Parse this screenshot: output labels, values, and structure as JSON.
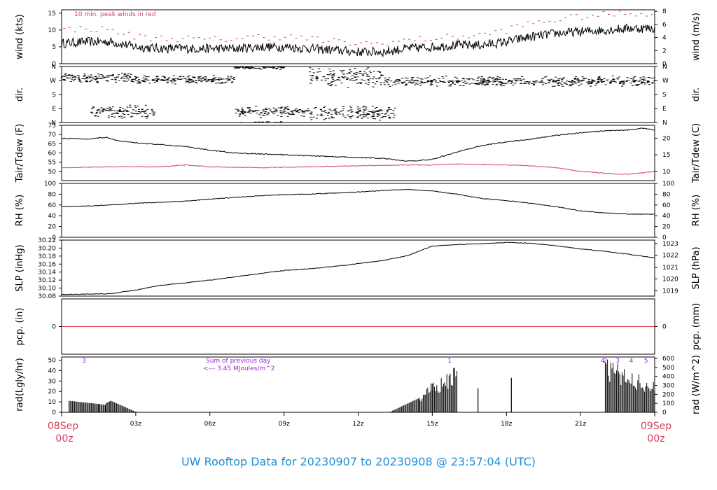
{
  "page": {
    "title": "UW Rooftop Data for 20230907  to  20230908 @ 23:57:04  (UTC)"
  },
  "colors": {
    "title": "#1f8fd6",
    "red": "#d6405a",
    "purple": "#9a2bd8",
    "line": "#000000"
  },
  "chart_data": {
    "type": "line",
    "x_axis": {
      "unit": "hours UTC since 08Sep 00z",
      "range": [
        0,
        24
      ],
      "ticks": [
        {
          "x": 3,
          "label": "03z"
        },
        {
          "x": 6,
          "label": "06z"
        },
        {
          "x": 9,
          "label": "09z"
        },
        {
          "x": 12,
          "label": "12z"
        },
        {
          "x": 15,
          "label": "15z"
        },
        {
          "x": 18,
          "label": "18z"
        },
        {
          "x": 21,
          "label": "21z"
        }
      ],
      "start_label": [
        "08Sep",
        "00z"
      ],
      "end_label": [
        "09Sep",
        "00z"
      ]
    },
    "panels": [
      {
        "id": "wind",
        "left_label": "wind (kts)",
        "right_label": "wind (m/s)",
        "ylim": [
          0,
          16
        ],
        "left_ticks": [
          0,
          5,
          10,
          15
        ],
        "right_ticks": [
          {
            "v": 0,
            "label": "0"
          },
          {
            "v": 3.89,
            "label": "2"
          },
          {
            "v": 7.78,
            "label": "4"
          },
          {
            "v": 11.66,
            "label": "6"
          },
          {
            "v": 15.55,
            "label": "8"
          }
        ],
        "annotation": "10 min. peak winds in red",
        "series": [
          {
            "style": "line",
            "color": "#000000",
            "x": [
              0,
              1,
              2,
              3,
              4,
              5,
              6,
              7,
              8,
              9,
              10,
              11,
              12,
              13,
              14,
              15,
              16,
              17,
              18,
              19,
              20,
              21,
              22,
              23,
              24
            ],
            "values": [
              6,
              6.5,
              6.5,
              5,
              4.5,
              4.5,
              4.5,
              4.5,
              5,
              5,
              4.5,
              4,
              3.5,
              3.5,
              4.5,
              5,
              5.5,
              5.5,
              6.5,
              8,
              9,
              9.5,
              10,
              10.5,
              10.5
            ],
            "noise": 1.4
          },
          {
            "style": "dash",
            "color": "#d6405a",
            "x": [
              0,
              1,
              2,
              3,
              4,
              5,
              6,
              7,
              8,
              9,
              10,
              11,
              12,
              13,
              14,
              15,
              16,
              17,
              18,
              19,
              20,
              21,
              22,
              23,
              24
            ],
            "values": [
              10,
              10.5,
              10,
              8,
              7.5,
              7.5,
              7,
              7.5,
              8,
              8,
              7.5,
              6.5,
              6,
              6,
              7,
              7.5,
              8,
              8.5,
              10,
              12,
              13,
              14,
              14.5,
              15,
              15
            ],
            "noise": 1.0
          }
        ]
      },
      {
        "id": "dir",
        "left_label": "dir.",
        "right_label": "dir.",
        "ylim": [
          0,
          360
        ],
        "left_ticks": [
          {
            "v": 0,
            "label": "N"
          },
          {
            "v": 90,
            "label": "E"
          },
          {
            "v": 180,
            "label": "S"
          },
          {
            "v": 270,
            "label": "W"
          },
          {
            "v": 360,
            "label": "N"
          }
        ],
        "right_ticks": [
          {
            "v": 0,
            "label": "N"
          },
          {
            "v": 90,
            "label": "E"
          },
          {
            "v": 180,
            "label": "S"
          },
          {
            "v": 270,
            "label": "W"
          },
          {
            "v": 360,
            "label": "N"
          }
        ],
        "series": [
          {
            "style": "scatter",
            "color": "#000000",
            "clusters": [
              {
                "x0": 0,
                "x1": 3,
                "center": 285,
                "spread": 35
              },
              {
                "x0": 1.2,
                "x1": 3.8,
                "center": 70,
                "spread": 45
              },
              {
                "x0": 3,
                "x1": 7,
                "center": 275,
                "spread": 30
              },
              {
                "x0": 7,
                "x1": 9,
                "center": 355,
                "spread": 15
              },
              {
                "x0": 7,
                "x1": 10,
                "center": 70,
                "spread": 40
              },
              {
                "x0": 10,
                "x1": 13,
                "center": 290,
                "spread": 70
              },
              {
                "x0": 10,
                "x1": 13.5,
                "center": 60,
                "spread": 50
              },
              {
                "x0": 13,
                "x1": 24,
                "center": 265,
                "spread": 35
              }
            ]
          }
        ]
      },
      {
        "id": "temp",
        "left_label": "Tair/Tdew (F)",
        "right_label": "Tair/Tdew (C)",
        "ylim": [
          45,
          75
        ],
        "left_ticks": [
          50,
          55,
          60,
          65,
          70,
          75
        ],
        "right_ticks": [
          {
            "v": 50,
            "label": "10"
          },
          {
            "v": 59,
            "label": "15"
          },
          {
            "v": 68,
            "label": "20"
          }
        ],
        "series": [
          {
            "style": "line",
            "color": "#000000",
            "x": [
              0,
              1,
              1.8,
              2.3,
              3,
              4,
              5,
              6,
              7,
              8,
              9,
              10,
              11,
              12,
              13,
              14,
              15,
              16,
              17,
              18,
              19,
              20,
              21,
              22,
              23,
              23.5,
              24
            ],
            "values": [
              68,
              67.5,
              68.5,
              66.5,
              65.5,
              64.5,
              63.5,
              61.5,
              60,
              59.5,
              59,
              58.5,
              58,
              57.5,
              57,
              55.5,
              56.5,
              60.5,
              64,
              66,
              67.5,
              69.5,
              71,
              72,
              72.5,
              73.5,
              72.5
            ],
            "noise": 0.25
          },
          {
            "style": "line",
            "color": "#d6405a",
            "x": [
              0,
              2,
              4,
              5,
              6,
              8,
              10,
              12,
              14,
              15,
              16,
              18,
              19,
              20,
              21,
              22,
              22.5,
              23,
              24
            ],
            "values": [
              52,
              52.5,
              52.5,
              53.5,
              52.5,
              52,
              52.5,
              53,
              53.5,
              53.5,
              54,
              53.5,
              53,
              52,
              50,
              49,
              48.5,
              48.5,
              50
            ],
            "noise": 0.2
          }
        ]
      },
      {
        "id": "rh",
        "left_label": "RH (%)",
        "right_label": "RH (%)",
        "ylim": [
          0,
          100
        ],
        "left_ticks": [
          0,
          20,
          40,
          60,
          80,
          100
        ],
        "right_ticks": [
          {
            "v": 0,
            "label": "0"
          },
          {
            "v": 20,
            "label": "20"
          },
          {
            "v": 40,
            "label": "40"
          },
          {
            "v": 60,
            "label": "60"
          },
          {
            "v": 80,
            "label": "80"
          },
          {
            "v": 100,
            "label": "100"
          }
        ],
        "series": [
          {
            "style": "line",
            "color": "#000000",
            "x": [
              0,
              1,
              2,
              3,
              4,
              5,
              6,
              7,
              8,
              9,
              10,
              11,
              12,
              13,
              13.5,
              14,
              15,
              16,
              17,
              18,
              19,
              20,
              21,
              22,
              23,
              24
            ],
            "values": [
              57,
              58,
              60,
              63,
              65,
              67,
              71,
              74,
              77,
              79,
              80,
              82,
              84,
              87,
              88,
              89,
              86,
              80,
              72,
              68,
              63,
              57,
              49,
              45,
              43,
              43
            ],
            "noise": 0.6
          }
        ]
      },
      {
        "id": "slp",
        "left_label": "SLP (inHg)",
        "right_label": "SLP (hPa)",
        "ylim": [
          30.08,
          30.22
        ],
        "left_ticks": [
          30.08,
          30.1,
          30.12,
          30.14,
          30.16,
          30.18,
          30.2,
          30.22
        ],
        "right_ticks": [
          {
            "v": 30.093,
            "label": "1019"
          },
          {
            "v": 30.123,
            "label": "1020"
          },
          {
            "v": 30.152,
            "label": "1021"
          },
          {
            "v": 30.182,
            "label": "1022"
          },
          {
            "v": 30.211,
            "label": "1023"
          }
        ],
        "series": [
          {
            "style": "line",
            "color": "#000000",
            "x": [
              0,
              1,
              2,
              3,
              4,
              5,
              6,
              7,
              8,
              9,
              10,
              11,
              12,
              13,
              14,
              15,
              16,
              17,
              18,
              19,
              20,
              21,
              22,
              23,
              24
            ],
            "values": [
              30.084,
              30.085,
              30.086,
              30.095,
              30.107,
              30.113,
              30.12,
              30.128,
              30.136,
              30.144,
              30.148,
              30.154,
              30.161,
              30.169,
              30.181,
              30.205,
              30.209,
              30.211,
              30.214,
              30.212,
              30.206,
              30.198,
              30.192,
              30.184,
              30.176
            ],
            "noise": 0.0008
          }
        ]
      },
      {
        "id": "pcp",
        "left_label": "pcp. (in)",
        "right_label": "pcp. (mm)",
        "ylim": [
          -1,
          1
        ],
        "left_ticks": [
          0
        ],
        "right_ticks": [
          {
            "v": 0,
            "label": "0"
          }
        ],
        "series": [
          {
            "style": "line",
            "color": "#d6405a",
            "x": [
              0,
              24
            ],
            "values": [
              0,
              0
            ],
            "noise": 0
          }
        ]
      },
      {
        "id": "rad",
        "left_label": "rad(Lgly/hr)",
        "right_label": "rad (W/m^2)",
        "ylim": [
          0,
          53
        ],
        "left_ticks": [
          0,
          10,
          20,
          30,
          40,
          50
        ],
        "right_ticks": [
          {
            "v": 0,
            "label": "0"
          },
          {
            "v": 8.6,
            "label": "100"
          },
          {
            "v": 17.2,
            "label": "200"
          },
          {
            "v": 25.8,
            "label": "300"
          },
          {
            "v": 34.4,
            "label": "400"
          },
          {
            "v": 43.0,
            "label": "500"
          },
          {
            "v": 51.6,
            "label": "600"
          }
        ],
        "annotations": [
          "Sum of previous day",
          "<--- 3.45 MJoules/m^2"
        ],
        "top_markers": [
          {
            "x": 0.9,
            "label": "3"
          },
          {
            "x": 15.7,
            "label": "1"
          },
          {
            "x": 21.9,
            "label": "4"
          },
          {
            "x": 22.0,
            "label": "2"
          },
          {
            "x": 22.5,
            "label": "3"
          },
          {
            "x": 23.05,
            "label": "4"
          },
          {
            "x": 23.65,
            "label": "5"
          }
        ],
        "series": [
          {
            "style": "bars",
            "color": "#000000",
            "segments": [
              {
                "x0": 0.3,
                "x1": 1.5,
                "v0": 11,
                "v1": 8
              },
              {
                "x0": 1.5,
                "x1": 1.8,
                "v0": 8,
                "v1": 7
              },
              {
                "x0": 1.8,
                "x1": 2.0,
                "v0": 9,
                "v1": 11
              },
              {
                "x0": 2.0,
                "x1": 3.0,
                "v0": 11,
                "v1": 0.5
              },
              {
                "x0": 13.3,
                "x1": 14.5,
                "v0": 0.5,
                "v1": 14
              },
              {
                "x0": 14.5,
                "x1": 15.0,
                "v0": 14,
                "v1": 30
              },
              {
                "x0": 15.0,
                "x1": 16.0,
                "v0": 30,
                "v1": 45
              },
              {
                "x0": 22.0,
                "x1": 24.0,
                "v0": 52,
                "v1": 31
              }
            ],
            "singles": [
              {
                "x": 16.85,
                "v": 23
              },
              {
                "x": 18.2,
                "v": 33
              }
            ]
          }
        ]
      }
    ]
  }
}
